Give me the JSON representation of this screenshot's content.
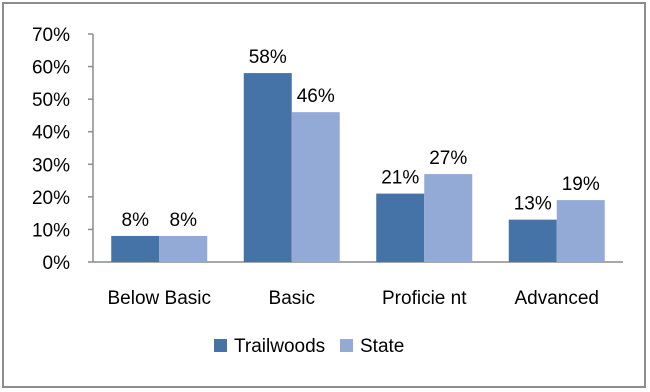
{
  "chart_data": {
    "type": "bar",
    "categories": [
      "Below  Basic",
      "Basic",
      "Proficie nt",
      "Advanced"
    ],
    "series": [
      {
        "name": "Trailwoods",
        "values": [
          8,
          58,
          21,
          13
        ],
        "labels": [
          "8%",
          "58%",
          "21%",
          "13%"
        ],
        "color": "#4572a7"
      },
      {
        "name": "State",
        "values": [
          8,
          46,
          27,
          19
        ],
        "labels": [
          "8%",
          "46%",
          "27%",
          "19%"
        ],
        "color": "#93aad6"
      }
    ],
    "ylim": [
      0,
      70
    ],
    "yticks": [
      0,
      10,
      20,
      30,
      40,
      50,
      60,
      70
    ],
    "ytick_labels": [
      "0%",
      "10%",
      "20%",
      "30%",
      "40%",
      "50%",
      "60%",
      "70%"
    ],
    "grid": false,
    "legend_position": "bottom",
    "title": "",
    "xlabel": "",
    "ylabel": ""
  }
}
